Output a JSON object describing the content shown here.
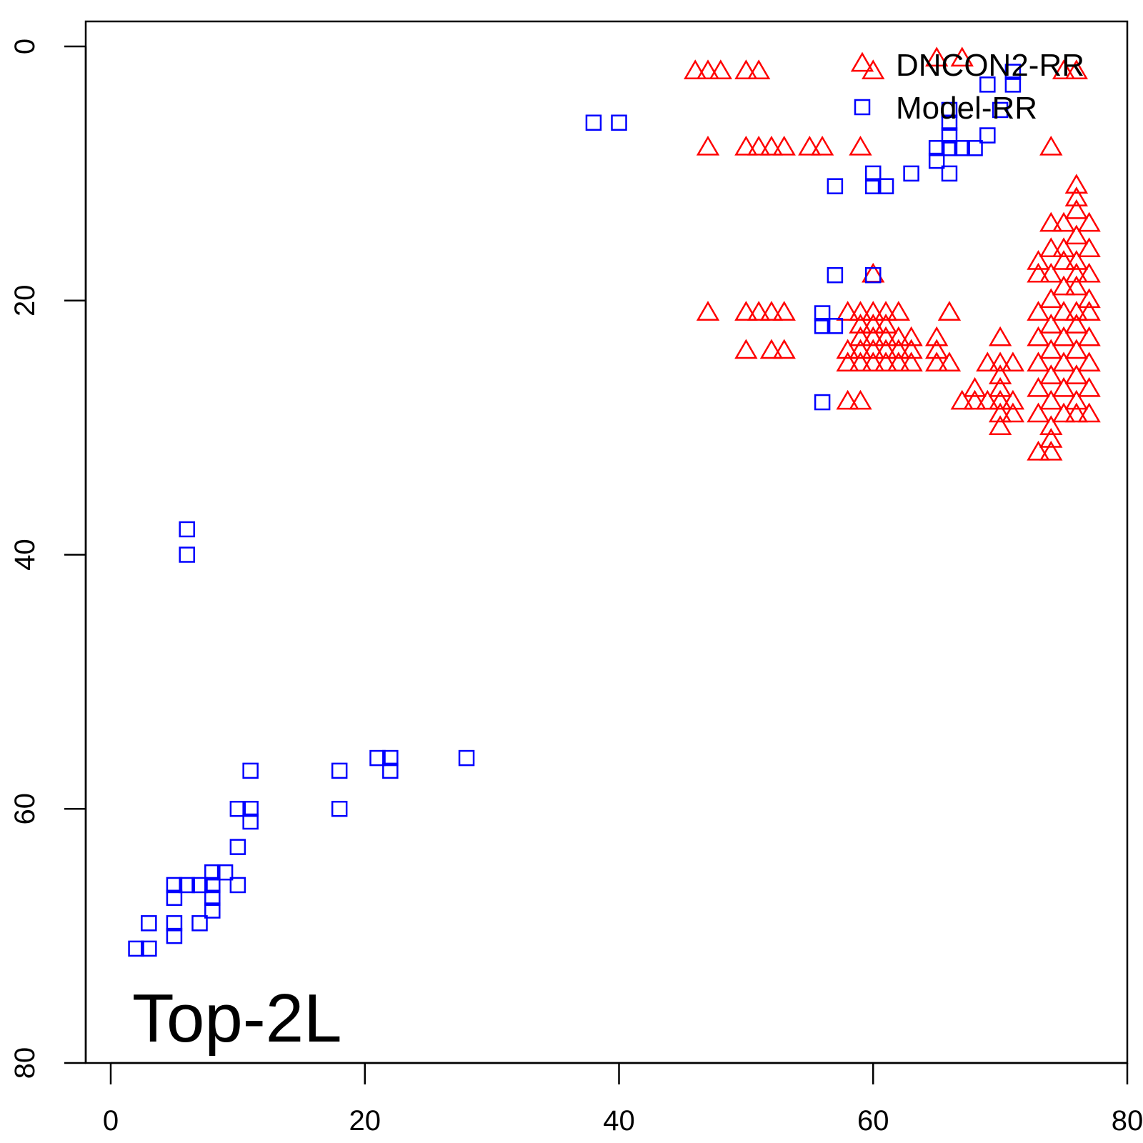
{
  "chart_data": {
    "type": "scatter",
    "title": "",
    "xlabel": "",
    "ylabel": "",
    "annotation": "Top-2L",
    "xlim": [
      -2,
      80
    ],
    "ylim": [
      0,
      80
    ],
    "y_reversed": true,
    "xticks": [
      0,
      20,
      40,
      60,
      80
    ],
    "yticks": [
      0,
      20,
      40,
      60,
      80
    ],
    "grid": false,
    "legend_position": "top-right",
    "series": [
      {
        "name": "DNCON2-RR",
        "marker": "triangle-open",
        "color": "#ff0000",
        "points": [
          [
            65,
            1
          ],
          [
            67,
            1
          ],
          [
            75,
            2
          ],
          [
            76,
            2
          ],
          [
            46,
            2
          ],
          [
            47,
            2
          ],
          [
            48,
            2
          ],
          [
            50,
            2
          ],
          [
            51,
            2
          ],
          [
            60,
            2
          ],
          [
            47,
            8
          ],
          [
            50,
            8
          ],
          [
            51,
            8
          ],
          [
            52,
            8
          ],
          [
            53,
            8
          ],
          [
            55,
            8
          ],
          [
            56,
            8
          ],
          [
            59,
            8
          ],
          [
            74,
            8
          ],
          [
            76,
            11
          ],
          [
            76,
            12
          ],
          [
            76,
            13
          ],
          [
            75,
            14
          ],
          [
            77,
            14
          ],
          [
            74,
            14
          ],
          [
            76,
            15
          ],
          [
            75,
            16
          ],
          [
            77,
            16
          ],
          [
            74,
            16
          ],
          [
            76,
            17
          ],
          [
            75,
            17
          ],
          [
            73,
            17
          ],
          [
            74,
            18
          ],
          [
            76,
            18
          ],
          [
            77,
            18
          ],
          [
            73,
            18
          ],
          [
            60,
            18
          ],
          [
            75,
            19
          ],
          [
            76,
            19
          ],
          [
            77,
            20
          ],
          [
            74,
            20
          ],
          [
            47,
            21
          ],
          [
            50,
            21
          ],
          [
            51,
            21
          ],
          [
            52,
            21
          ],
          [
            53,
            21
          ],
          [
            58,
            21
          ],
          [
            59,
            21
          ],
          [
            60,
            21
          ],
          [
            61,
            21
          ],
          [
            62,
            21
          ],
          [
            66,
            21
          ],
          [
            73,
            21
          ],
          [
            75,
            21
          ],
          [
            76,
            21
          ],
          [
            77,
            21
          ],
          [
            59,
            22
          ],
          [
            60,
            22
          ],
          [
            61,
            22
          ],
          [
            74,
            22
          ],
          [
            76,
            22
          ],
          [
            59,
            23
          ],
          [
            60,
            23
          ],
          [
            61,
            23
          ],
          [
            62,
            23
          ],
          [
            63,
            23
          ],
          [
            65,
            23
          ],
          [
            70,
            23
          ],
          [
            73,
            23
          ],
          [
            75,
            23
          ],
          [
            77,
            23
          ],
          [
            50,
            24
          ],
          [
            52,
            24
          ],
          [
            53,
            24
          ],
          [
            58,
            24
          ],
          [
            59,
            24
          ],
          [
            60,
            24
          ],
          [
            61,
            24
          ],
          [
            62,
            24
          ],
          [
            63,
            24
          ],
          [
            65,
            24
          ],
          [
            74,
            24
          ],
          [
            76,
            24
          ],
          [
            58,
            25
          ],
          [
            59,
            25
          ],
          [
            60,
            25
          ],
          [
            61,
            25
          ],
          [
            62,
            25
          ],
          [
            63,
            25
          ],
          [
            65,
            25
          ],
          [
            66,
            25
          ],
          [
            69,
            25
          ],
          [
            70,
            25
          ],
          [
            71,
            25
          ],
          [
            73,
            25
          ],
          [
            75,
            25
          ],
          [
            77,
            25
          ],
          [
            70,
            26
          ],
          [
            74,
            26
          ],
          [
            76,
            26
          ],
          [
            68,
            27
          ],
          [
            70,
            27
          ],
          [
            73,
            27
          ],
          [
            75,
            27
          ],
          [
            77,
            27
          ],
          [
            58,
            28
          ],
          [
            59,
            28
          ],
          [
            67,
            28
          ],
          [
            68,
            28
          ],
          [
            69,
            28
          ],
          [
            70,
            28
          ],
          [
            71,
            28
          ],
          [
            74,
            28
          ],
          [
            76,
            28
          ],
          [
            70,
            29
          ],
          [
            71,
            29
          ],
          [
            73,
            29
          ],
          [
            75,
            29
          ],
          [
            76,
            29
          ],
          [
            77,
            29
          ],
          [
            70,
            30
          ],
          [
            74,
            30
          ],
          [
            74,
            31
          ],
          [
            73,
            32
          ],
          [
            74,
            32
          ]
        ]
      },
      {
        "name": "Model-RR",
        "marker": "square-open",
        "color": "#0000ff",
        "points": [
          [
            71,
            2
          ],
          [
            69,
            3
          ],
          [
            71,
            3
          ],
          [
            70,
            5
          ],
          [
            66,
            5
          ],
          [
            66,
            6
          ],
          [
            66,
            7
          ],
          [
            69,
            7
          ],
          [
            38,
            6
          ],
          [
            40,
            6
          ],
          [
            65,
            8
          ],
          [
            66,
            8
          ],
          [
            67,
            8
          ],
          [
            68,
            8
          ],
          [
            65,
            9
          ],
          [
            63,
            10
          ],
          [
            66,
            10
          ],
          [
            60,
            10
          ],
          [
            57,
            11
          ],
          [
            60,
            11
          ],
          [
            61,
            11
          ],
          [
            57,
            18
          ],
          [
            60,
            18
          ],
          [
            56,
            21
          ],
          [
            56,
            22
          ],
          [
            57,
            22
          ],
          [
            56,
            28
          ],
          [
            6,
            38
          ],
          [
            6,
            40
          ],
          [
            21,
            56
          ],
          [
            22,
            56
          ],
          [
            28,
            56
          ],
          [
            11,
            57
          ],
          [
            18,
            57
          ],
          [
            22,
            57
          ],
          [
            10,
            60
          ],
          [
            11,
            60
          ],
          [
            18,
            60
          ],
          [
            11,
            61
          ],
          [
            10,
            63
          ],
          [
            8,
            65
          ],
          [
            9,
            65
          ],
          [
            5,
            66
          ],
          [
            6,
            66
          ],
          [
            7,
            66
          ],
          [
            8,
            66
          ],
          [
            10,
            66
          ],
          [
            5,
            67
          ],
          [
            8,
            67
          ],
          [
            8,
            68
          ],
          [
            3,
            69
          ],
          [
            5,
            69
          ],
          [
            7,
            69
          ],
          [
            5,
            70
          ],
          [
            2,
            71
          ],
          [
            3,
            71
          ]
        ]
      }
    ]
  }
}
